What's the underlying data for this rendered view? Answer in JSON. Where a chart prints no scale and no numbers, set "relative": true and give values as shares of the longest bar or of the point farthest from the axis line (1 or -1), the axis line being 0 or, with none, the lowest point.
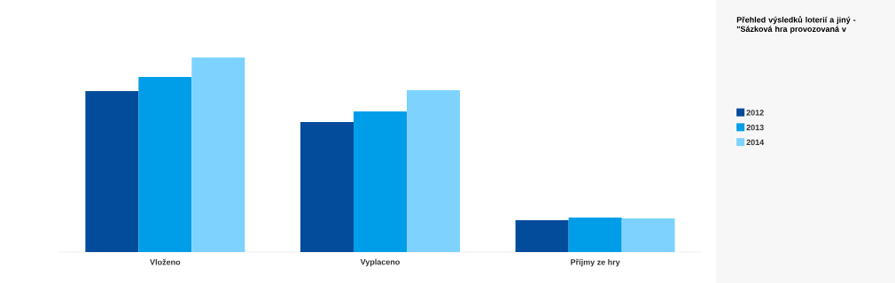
{
  "chart_data": {
    "type": "bar",
    "legend_title": "Přehled výsledků loterií a jiný - \"Sázková hra provozovaná v",
    "categories": [
      "Vloženo",
      "Vyplaceno",
      "Příjmy ze hry"
    ],
    "relative": true,
    "series": [
      {
        "name": "2012",
        "color": "#034b9b",
        "values": [
          0.827,
          0.668,
          0.164
        ]
      },
      {
        "name": "2013",
        "color": "#009ee8",
        "values": [
          0.9,
          0.722,
          0.177
        ]
      },
      {
        "name": "2014",
        "color": "#7dd3fd",
        "values": [
          1,
          0.832,
          0.173
        ]
      }
    ],
    "legend": "right"
  }
}
